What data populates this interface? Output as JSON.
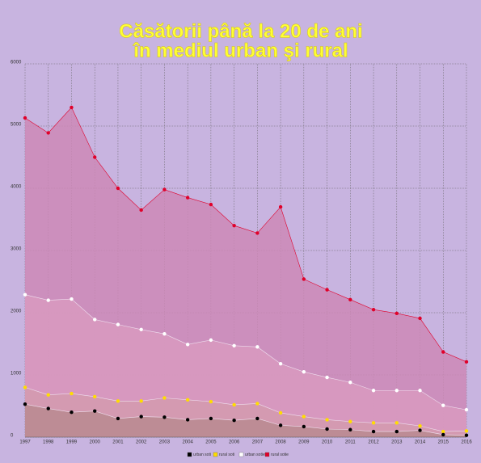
{
  "chart_data": {
    "type": "area",
    "title_lines": [
      "Căsătorii până la 20 de ani",
      "în mediul urban şi rural"
    ],
    "categories": [
      "1997",
      "1998",
      "1999",
      "2000",
      "2001",
      "2002",
      "2003",
      "2004",
      "2005",
      "2006",
      "2007",
      "2008",
      "2009",
      "2010",
      "2011",
      "2012",
      "2013",
      "2014",
      "2015",
      "2016"
    ],
    "series": [
      {
        "name": "urban soti",
        "color": "#000000",
        "area_color": "#b88a90",
        "values": [
          530,
          460,
          400,
          420,
          300,
          330,
          320,
          280,
          300,
          270,
          300,
          190,
          170,
          130,
          120,
          90,
          90,
          110,
          40,
          30
        ]
      },
      {
        "name": "rural soti",
        "color": "#ffdd00",
        "area_color": "#d49aae",
        "values": [
          800,
          680,
          700,
          650,
          580,
          580,
          630,
          600,
          570,
          520,
          540,
          390,
          330,
          280,
          250,
          230,
          230,
          180,
          90,
          100
        ]
      },
      {
        "name": "urban sotie",
        "color": "#ffffff",
        "area_color": "#d89ac0",
        "values": [
          2290,
          2200,
          2220,
          1890,
          1810,
          1730,
          1660,
          1490,
          1560,
          1470,
          1450,
          1180,
          1050,
          960,
          880,
          750,
          750,
          750,
          510,
          440
        ]
      },
      {
        "name": "rural sotie",
        "color": "#e0002a",
        "area_color": "#cc88b6",
        "values": [
          5130,
          4890,
          5300,
          4500,
          4000,
          3650,
          3980,
          3850,
          3740,
          3400,
          3280,
          3700,
          2540,
          2370,
          2210,
          2050,
          1990,
          1910,
          1370,
          1210
        ]
      }
    ],
    "ylim": [
      0,
      6000
    ],
    "yticks": [
      0,
      1000,
      2000,
      3000,
      4000,
      5000,
      6000
    ],
    "grid": true,
    "background": "#c8b4e0"
  }
}
